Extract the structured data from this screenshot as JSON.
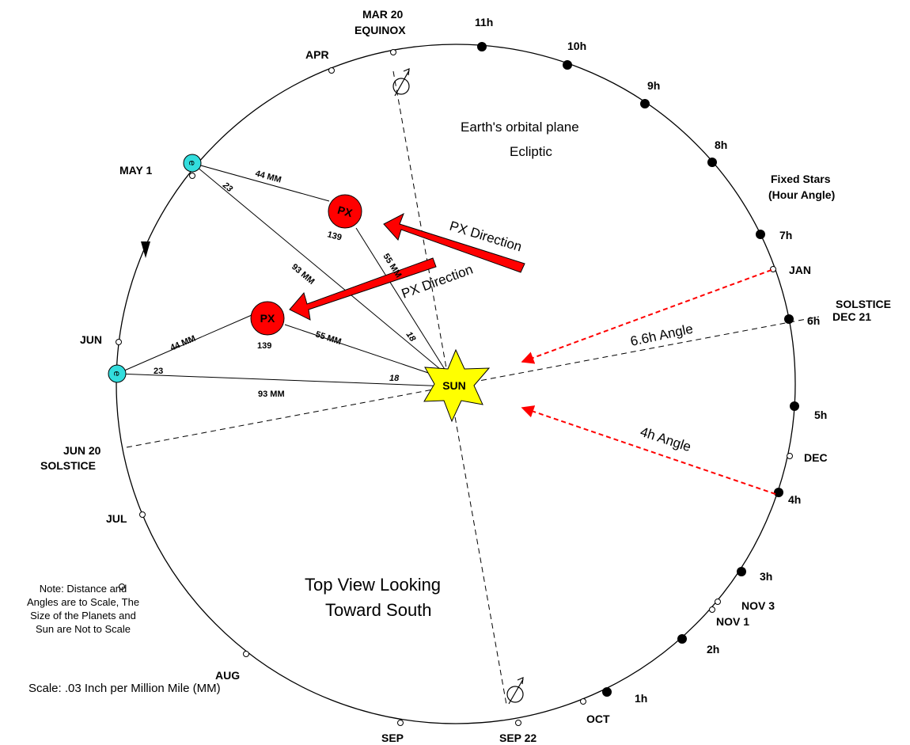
{
  "labels": {
    "mar20": "MAR 20",
    "equinox": "EQUINOX",
    "apr": "APR",
    "may1": "MAY 1",
    "jun": "JUN",
    "jun20": "JUN 20",
    "jun_solstice": "SOLSTICE",
    "jul": "JUL",
    "aug": "AUG",
    "sep": "SEP",
    "sep22": "SEP 22",
    "oct": "OCT",
    "nov1": "NOV 1",
    "nov3": "NOV 3",
    "dec": "DEC",
    "jan": "JAN",
    "solstice": "SOLSTICE",
    "dec21": "DEC 21",
    "fixed_stars": "Fixed Stars",
    "hour_angle": "(Hour Angle)"
  },
  "hours": [
    "11h",
    "10h",
    "9h",
    "8h",
    "7h",
    "6h",
    "5h",
    "4h",
    "3h",
    "2h",
    "1h"
  ],
  "texts": {
    "orbital_plane": "Earth's orbital plane",
    "ecliptic": "Ecliptic",
    "px_direction_1": "PX Direction",
    "px_direction_2": "PX Direction",
    "angle_66": "6.6h Angle",
    "angle_4": "4h Angle",
    "top_view_1": "Top View Looking",
    "top_view_2": "Toward South",
    "note_1": "Note: Distance and",
    "note_2": "Angles are to Scale, The",
    "note_3": "Size of the Planets and",
    "note_4": "Sun are Not to Scale",
    "scale": "Scale: .03 Inch per Million Mile (MM)"
  },
  "bodies": {
    "sun": "SUN",
    "px": "PX",
    "earth": "e"
  },
  "distances": {
    "d44": "44 MM",
    "d23": "23",
    "d93": "93 MM",
    "d55": "55 MM",
    "d18": "18",
    "d139": "139"
  },
  "colors": {
    "px_fill": "#ff0000",
    "earth_fill": "#33dddd",
    "sun_fill": "#ffff00",
    "arrow_red": "#ff0000",
    "dashed_red": "#ff0000"
  }
}
